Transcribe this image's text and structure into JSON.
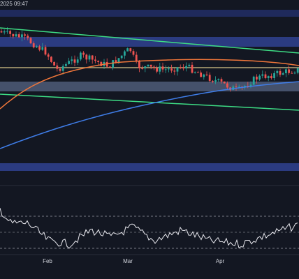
{
  "header": {
    "timestamp": "2025 09:47"
  },
  "x_axis": {
    "labels": [
      "Feb",
      "Mar",
      "Apr"
    ]
  }
}
